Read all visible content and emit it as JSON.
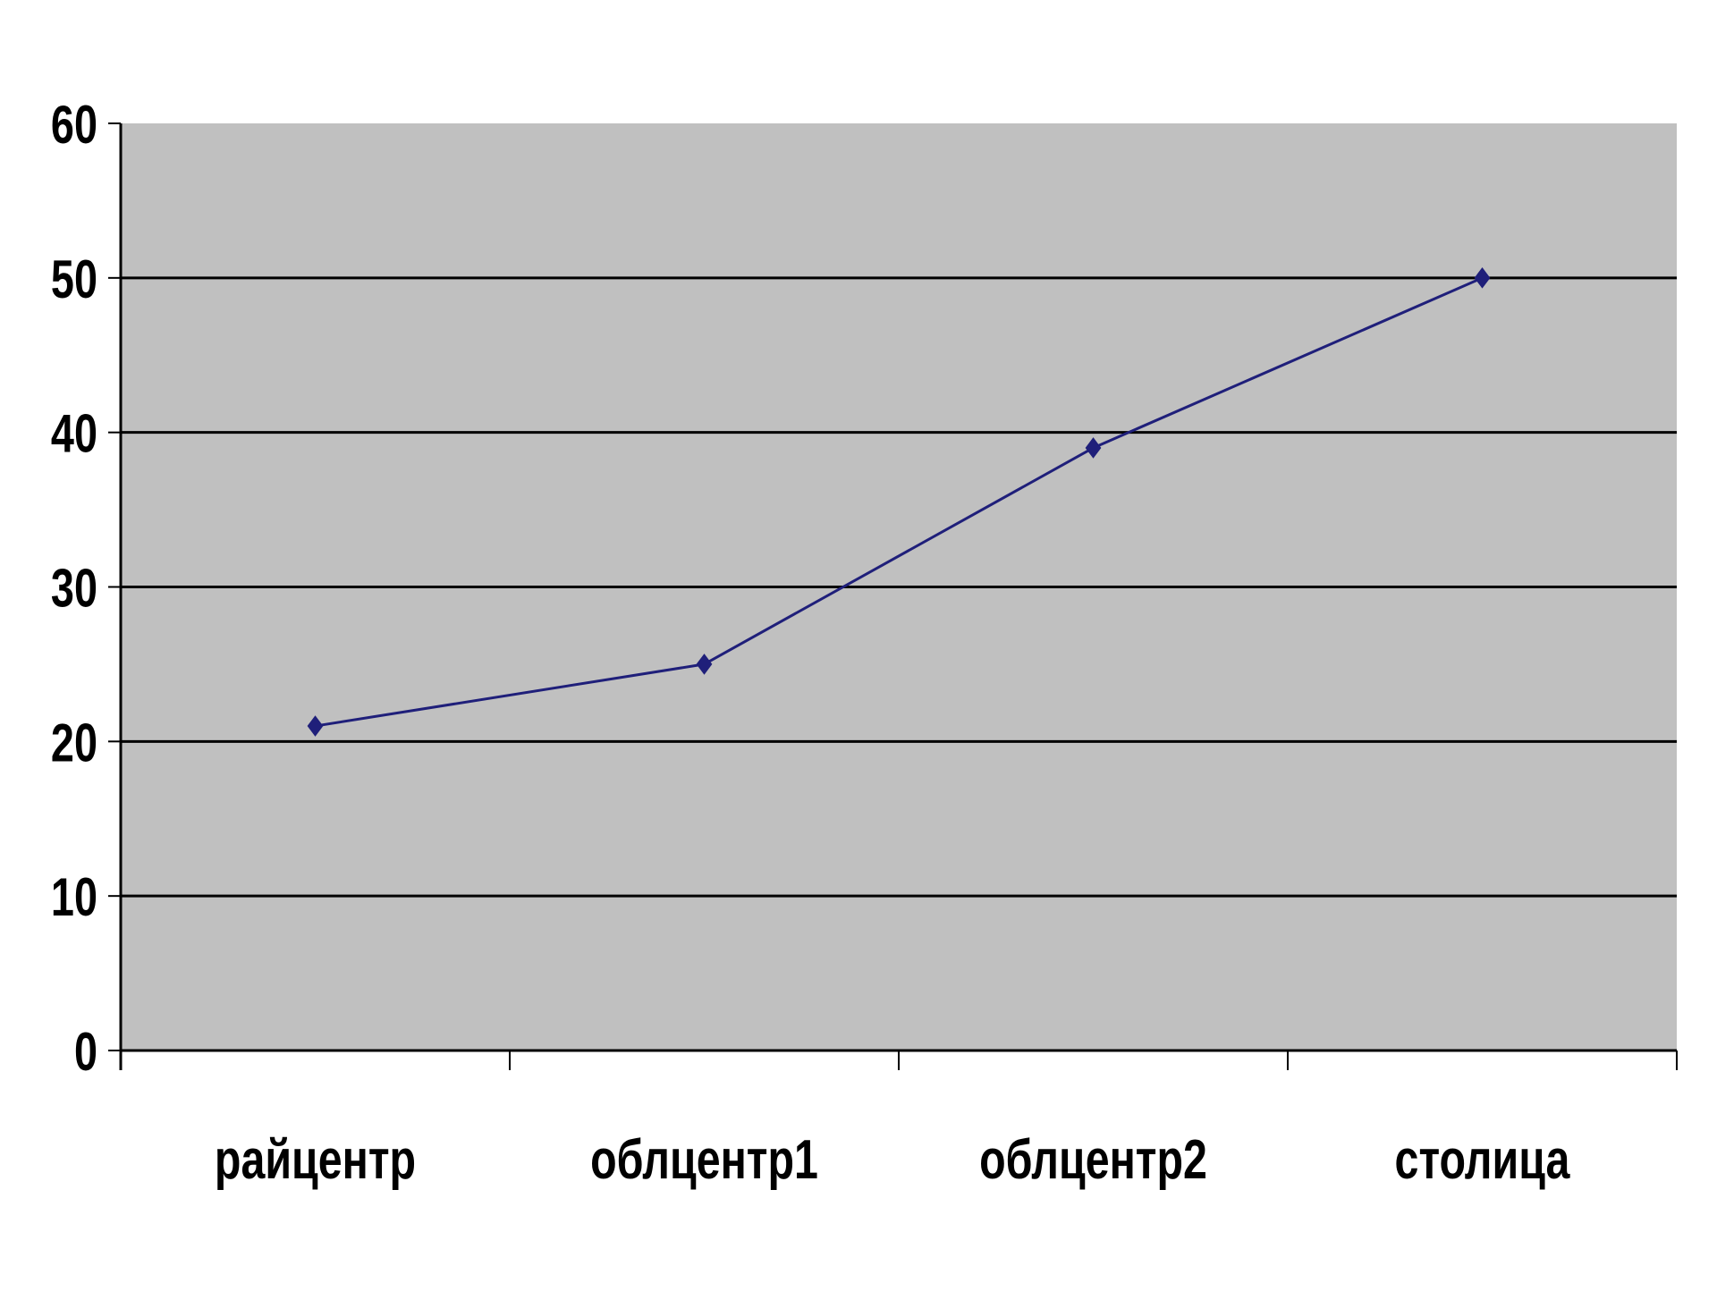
{
  "chart_data": {
    "type": "line",
    "title": "",
    "xlabel": "",
    "ylabel": "",
    "categories": [
      "райцентр",
      "облцентр1",
      "облцентр2",
      "столица"
    ],
    "series": [
      {
        "values": [
          21,
          25,
          39,
          50
        ],
        "color": "#1f1f7a"
      }
    ],
    "ylim": [
      0,
      60
    ],
    "yticks": [
      "0",
      "10",
      "20",
      "30",
      "40",
      "50",
      "60"
    ],
    "grid": true,
    "legend": "none",
    "plot_background": "#c0c0c0",
    "gridline_color": "#000000"
  }
}
